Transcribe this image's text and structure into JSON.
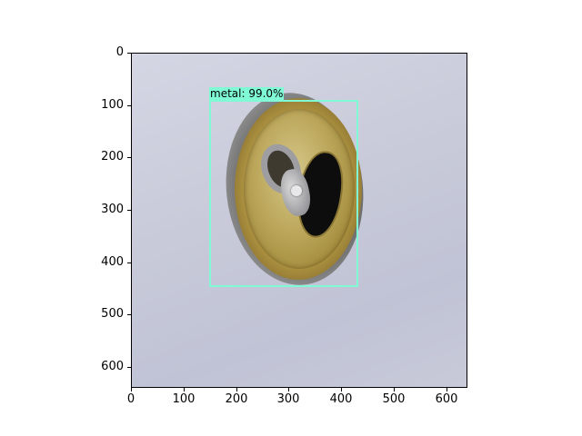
{
  "detection": {
    "label": "metal: 99.0%",
    "color": "#7ffad4"
  },
  "axes": {
    "x_ticks": [
      "0",
      "100",
      "200",
      "300",
      "400",
      "500",
      "600"
    ],
    "y_ticks": [
      "0",
      "100",
      "200",
      "300",
      "400",
      "500",
      "600"
    ]
  },
  "chart_data": {
    "type": "image",
    "xlim": [
      0,
      640
    ],
    "ylim": [
      640,
      0
    ],
    "grid": false,
    "boxes": [
      {
        "label": "metal: 99.0%",
        "x_min": 150,
        "y_min": 92,
        "x_max": 435,
        "y_max": 448
      }
    ]
  }
}
